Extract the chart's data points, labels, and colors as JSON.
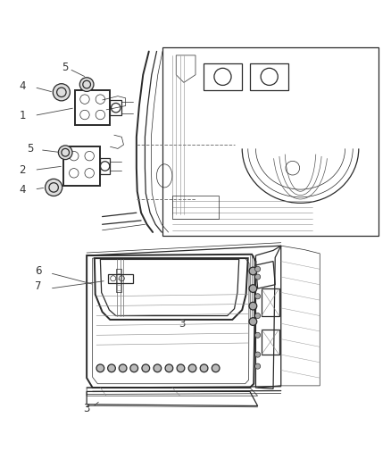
{
  "bg_color": "#ffffff",
  "lc": "#2a2a2a",
  "lc_light": "#555555",
  "fig_width": 4.38,
  "fig_height": 5.33,
  "dpi": 100
}
